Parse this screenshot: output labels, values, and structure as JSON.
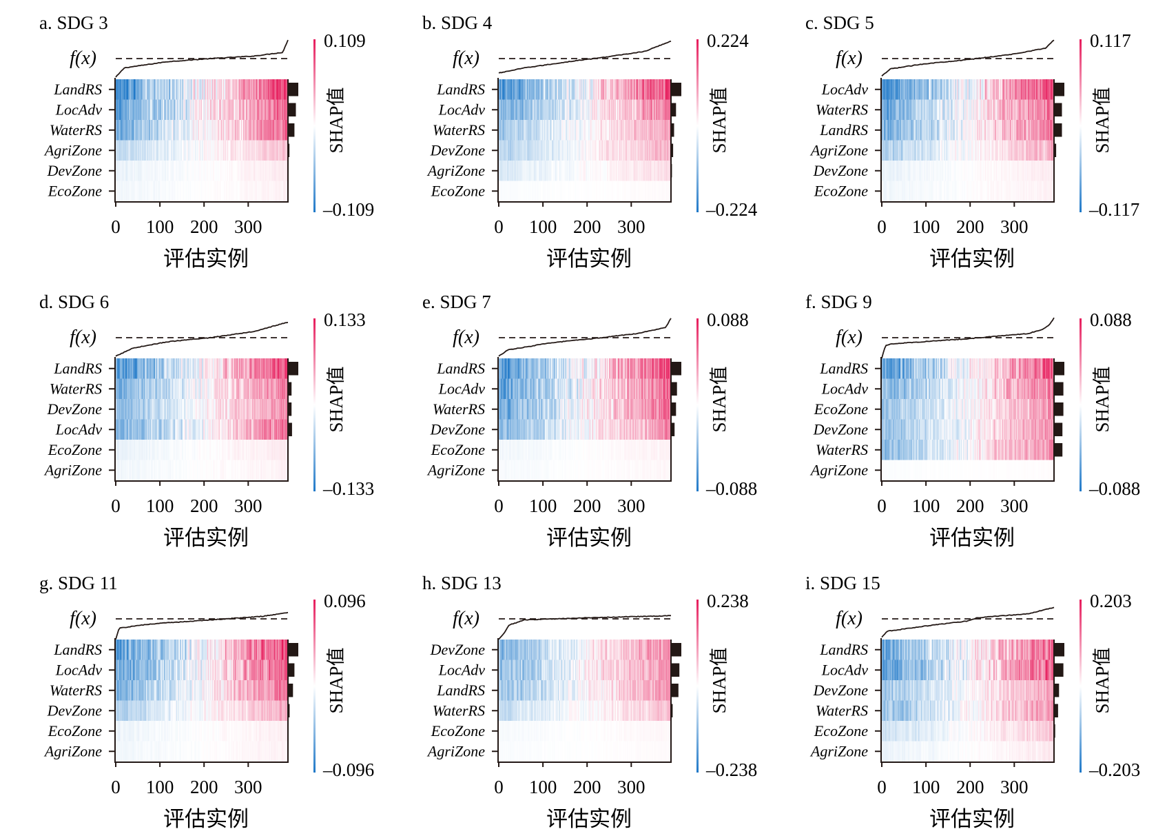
{
  "figure": {
    "colors": {
      "negative": "#1e78c8",
      "neutral": "#ffffff",
      "positive": "#e6195a",
      "axis": "#231815",
      "bar": "#231815"
    },
    "instances": 390
  },
  "chart_data": [
    {
      "type": "heatmap",
      "panel": "a",
      "title": "a. SDG 3",
      "fx_label": "f(x)",
      "xlabel": "评估实例",
      "x_ticks": [
        "0",
        "100",
        "200",
        "300"
      ],
      "xlim": [
        0,
        390
      ],
      "colorbar": {
        "title": "SHAP值",
        "max": "0.109",
        "min": "–0.109",
        "vmax": 0.109,
        "vmin": -0.109
      },
      "features": [
        "LandRS",
        "LocAdv",
        "WaterRS",
        "AgriZone",
        "DevZone",
        "EcoZone"
      ],
      "importance": [
        1.0,
        0.75,
        0.6,
        0.08,
        0.02,
        0.01
      ],
      "strength": [
        1.0,
        0.85,
        0.75,
        0.35,
        0.12,
        0.08
      ],
      "fx_curve": [
        [
          0,
          -0.9
        ],
        [
          0.05,
          -0.45
        ],
        [
          0.3,
          -0.15
        ],
        [
          0.55,
          0.0
        ],
        [
          0.8,
          0.12
        ],
        [
          0.97,
          0.3
        ],
        [
          1.0,
          0.9
        ]
      ]
    },
    {
      "type": "heatmap",
      "panel": "b",
      "title": "b. SDG 4",
      "fx_label": "f(x)",
      "xlabel": "评估实例",
      "x_ticks": [
        "0",
        "100",
        "200",
        "300"
      ],
      "xlim": [
        0,
        390
      ],
      "colorbar": {
        "title": "SHAP值",
        "max": "0.224",
        "min": "–0.224",
        "vmax": 0.224,
        "vmin": -0.224
      },
      "features": [
        "LandRS",
        "LocAdv",
        "WaterRS",
        "DevZone",
        "AgriZone",
        "EcoZone"
      ],
      "importance": [
        1.0,
        0.45,
        0.25,
        0.15,
        0.03,
        0.01
      ],
      "strength": [
        1.0,
        0.75,
        0.5,
        0.4,
        0.2,
        0.03
      ],
      "fx_curve": [
        [
          0,
          -0.7
        ],
        [
          0.15,
          -0.45
        ],
        [
          0.45,
          -0.1
        ],
        [
          0.6,
          0.05
        ],
        [
          0.85,
          0.35
        ],
        [
          1.0,
          0.85
        ]
      ]
    },
    {
      "type": "heatmap",
      "panel": "c",
      "title": "c. SDG 5",
      "fx_label": "f(x)",
      "xlabel": "评估实例",
      "x_ticks": [
        "0",
        "100",
        "200",
        "300"
      ],
      "xlim": [
        0,
        390
      ],
      "colorbar": {
        "title": "SHAP值",
        "max": "0.117",
        "min": "–0.117",
        "vmax": 0.117,
        "vmin": -0.117
      },
      "features": [
        "LocAdv",
        "WaterRS",
        "LandRS",
        "AgriZone",
        "DevZone",
        "EcoZone"
      ],
      "importance": [
        1.0,
        0.75,
        0.75,
        0.15,
        0.02,
        0.01
      ],
      "strength": [
        1.0,
        0.8,
        0.8,
        0.45,
        0.12,
        0.08
      ],
      "fx_curve": [
        [
          0,
          -0.85
        ],
        [
          0.05,
          -0.5
        ],
        [
          0.25,
          -0.25
        ],
        [
          0.5,
          -0.05
        ],
        [
          0.75,
          0.2
        ],
        [
          0.95,
          0.5
        ],
        [
          1.0,
          0.9
        ]
      ]
    },
    {
      "type": "heatmap",
      "panel": "d",
      "title": "d. SDG 6",
      "fx_label": "f(x)",
      "xlabel": "评估实例",
      "x_ticks": [
        "0",
        "100",
        "200",
        "300"
      ],
      "xlim": [
        0,
        390
      ],
      "colorbar": {
        "title": "SHAP值",
        "max": "0.133",
        "min": "–0.133",
        "vmax": 0.133,
        "vmin": -0.133
      },
      "features": [
        "LandRS",
        "WaterRS",
        "DevZone",
        "LocAdv",
        "EcoZone",
        "AgriZone"
      ],
      "importance": [
        1.0,
        0.3,
        0.3,
        0.35,
        0.02,
        0.01
      ],
      "strength": [
        1.0,
        0.75,
        0.6,
        0.75,
        0.12,
        0.08
      ],
      "fx_curve": [
        [
          0,
          -0.9
        ],
        [
          0.1,
          -0.5
        ],
        [
          0.3,
          -0.2
        ],
        [
          0.55,
          0.0
        ],
        [
          0.8,
          0.3
        ],
        [
          1.0,
          0.75
        ]
      ]
    },
    {
      "type": "heatmap",
      "panel": "e",
      "title": "e. SDG 7",
      "fx_label": "f(x)",
      "xlabel": "评估实例",
      "x_ticks": [
        "0",
        "100",
        "200",
        "300"
      ],
      "xlim": [
        0,
        390
      ],
      "colorbar": {
        "title": "SHAP值",
        "max": "0.088",
        "min": "–0.088",
        "vmax": 0.088,
        "vmin": -0.088
      },
      "features": [
        "LandRS",
        "LocAdv",
        "WaterRS",
        "DevZone",
        "EcoZone",
        "AgriZone"
      ],
      "importance": [
        1.0,
        0.55,
        0.45,
        0.3,
        0.01,
        0.01
      ],
      "strength": [
        1.0,
        0.85,
        0.8,
        0.65,
        0.08,
        0.05
      ],
      "fx_curve": [
        [
          0,
          -0.9
        ],
        [
          0.05,
          -0.6
        ],
        [
          0.3,
          -0.25
        ],
        [
          0.6,
          0.0
        ],
        [
          0.8,
          0.2
        ],
        [
          0.97,
          0.5
        ],
        [
          1.0,
          0.95
        ]
      ]
    },
    {
      "type": "heatmap",
      "panel": "f",
      "title": "f. SDG 9",
      "fx_label": "f(x)",
      "xlabel": "评估实例",
      "x_ticks": [
        "0",
        "100",
        "200",
        "300"
      ],
      "xlim": [
        0,
        390
      ],
      "colorbar": {
        "title": "SHAP值",
        "max": "0.088",
        "min": "–0.088",
        "vmax": 0.088,
        "vmin": -0.088
      },
      "features": [
        "LandRS",
        "LocAdv",
        "EcoZone",
        "DevZone",
        "WaterRS",
        "AgriZone"
      ],
      "importance": [
        1.0,
        0.9,
        0.9,
        0.8,
        0.8,
        0.0
      ],
      "strength": [
        0.9,
        0.75,
        0.6,
        0.6,
        0.65,
        0.02
      ],
      "fx_curve": [
        [
          0,
          -1.0
        ],
        [
          0.02,
          -0.4
        ],
        [
          0.05,
          -0.3
        ],
        [
          0.5,
          -0.05
        ],
        [
          0.85,
          0.2
        ],
        [
          0.93,
          0.4
        ],
        [
          0.97,
          0.6
        ],
        [
          1.0,
          0.95
        ]
      ]
    },
    {
      "type": "heatmap",
      "panel": "g",
      "title": "g. SDG 11",
      "fx_label": "f(x)",
      "xlabel": "评估实例",
      "x_ticks": [
        "0",
        "100",
        "200",
        "300"
      ],
      "xlim": [
        0,
        390
      ],
      "colorbar": {
        "title": "SHAP值",
        "max": "0.096",
        "min": "–0.096",
        "vmax": 0.096,
        "vmin": -0.096
      },
      "features": [
        "LandRS",
        "LocAdv",
        "WaterRS",
        "DevZone",
        "EcoZone",
        "AgriZone"
      ],
      "importance": [
        1.0,
        0.6,
        0.45,
        0.1,
        0.01,
        0.01
      ],
      "strength": [
        1.0,
        0.85,
        0.75,
        0.45,
        0.1,
        0.08
      ],
      "fx_curve": [
        [
          0,
          -1.0
        ],
        [
          0.02,
          -0.45
        ],
        [
          0.2,
          -0.25
        ],
        [
          0.55,
          -0.05
        ],
        [
          0.85,
          0.12
        ],
        [
          1.0,
          0.3
        ]
      ]
    },
    {
      "type": "heatmap",
      "panel": "h",
      "title": "h. SDG 13",
      "fx_label": "f(x)",
      "xlabel": "评估实例",
      "x_ticks": [
        "0",
        "100",
        "200",
        "300"
      ],
      "xlim": [
        0,
        390
      ],
      "colorbar": {
        "title": "SHAP值",
        "max": "0.238",
        "min": "–0.238",
        "vmax": 0.238,
        "vmin": -0.238
      },
      "features": [
        "DevZone",
        "LocAdv",
        "LandRS",
        "WaterRS",
        "EcoZone",
        "AgriZone"
      ],
      "importance": [
        1.0,
        0.8,
        0.7,
        0.1,
        0.01,
        0.01
      ],
      "strength": [
        0.7,
        0.65,
        0.6,
        0.35,
        0.05,
        0.03
      ],
      "fx_curve": [
        [
          0,
          -1.0
        ],
        [
          0.03,
          -0.7
        ],
        [
          0.06,
          -0.3
        ],
        [
          0.15,
          -0.05
        ],
        [
          0.5,
          0.05
        ],
        [
          1.0,
          0.15
        ]
      ]
    },
    {
      "type": "heatmap",
      "panel": "i",
      "title": "i. SDG 15",
      "fx_label": "f(x)",
      "xlabel": "评估实例",
      "x_ticks": [
        "0",
        "100",
        "200",
        "300"
      ],
      "xlim": [
        0,
        390
      ],
      "colorbar": {
        "title": "SHAP值",
        "max": "0.203",
        "min": "–0.203",
        "vmax": 0.203,
        "vmin": -0.203
      },
      "features": [
        "LandRS",
        "LocAdv",
        "DevZone",
        "WaterRS",
        "EcoZone",
        "AgriZone"
      ],
      "importance": [
        1.0,
        0.9,
        0.45,
        0.35,
        0.05,
        0.01
      ],
      "strength": [
        0.85,
        0.9,
        0.5,
        0.6,
        0.3,
        0.12
      ],
      "fx_curve": [
        [
          0,
          -0.9
        ],
        [
          0.03,
          -0.6
        ],
        [
          0.25,
          -0.35
        ],
        [
          0.5,
          -0.1
        ],
        [
          0.55,
          0.05
        ],
        [
          0.85,
          0.25
        ],
        [
          1.0,
          0.55
        ]
      ]
    }
  ]
}
